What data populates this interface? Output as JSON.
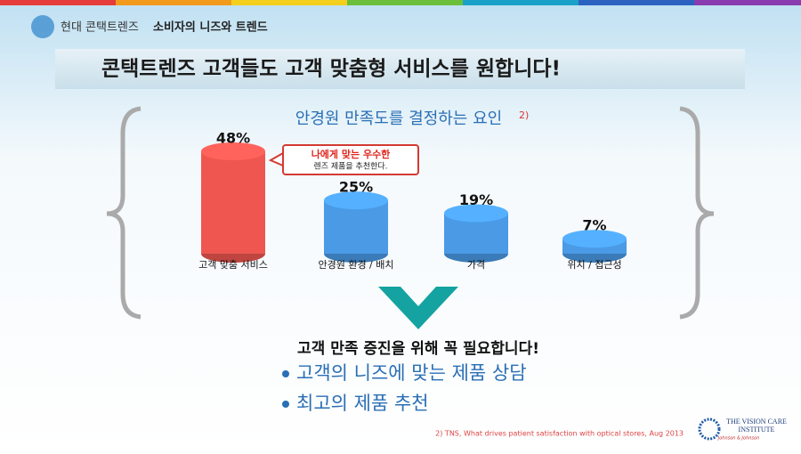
{
  "header": {
    "brand": "현대 콘택트렌즈",
    "topic": "소비자의 니즈와 트렌드"
  },
  "banner": "콘택트렌즈 고객들도 고객 맞춤형 서비스를 원합니다!",
  "chart_data": {
    "type": "bar",
    "title": "안경원 만족도를 결정하는 요인",
    "title_note": "2)",
    "categories": [
      "고객 맞춤 서비스",
      "안경원 환경 / 배치",
      "가격",
      "위치 / 접근성"
    ],
    "values": [
      48,
      25,
      19,
      7
    ],
    "value_labels": [
      "48%",
      "25%",
      "19%",
      "7%"
    ],
    "colors": [
      "#ef5650",
      "#4a9ae6",
      "#4a9ae6",
      "#4a9ae6"
    ],
    "callout": [
      "나에게 맞는 우수한",
      "렌즈 제품을 추천한다."
    ]
  },
  "conclusion": {
    "heading": "고객 만족 증진을 위해 꼭 필요합니다!",
    "bullets": [
      "고객의 니즈에 맞는 제품 상담",
      "최고의 제품 추천"
    ]
  },
  "footnote": "2) TNS, What drives patient satisfaction with optical stores,  Aug 2013",
  "logo": {
    "line1": "THE VISION CARE",
    "line2": "INSTITUTE",
    "line3": "Johnson & Johnson"
  }
}
